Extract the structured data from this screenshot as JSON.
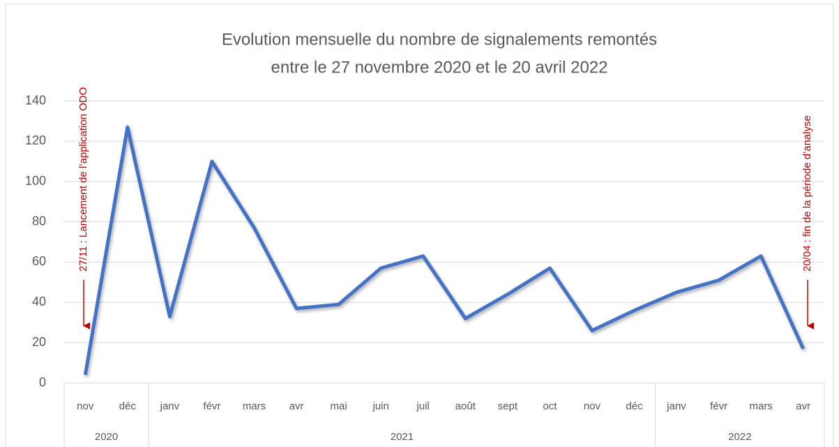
{
  "chart_data": {
    "type": "line",
    "title": [
      "Evolution mensuelle du nombre de signalements remontés",
      "entre le 27 novembre 2020 et le 20 avril 2022"
    ],
    "groups": [
      {
        "label": "2020",
        "categories": [
          "nov",
          "déc"
        ]
      },
      {
        "label": "2021",
        "categories": [
          "janv",
          "févr",
          "mars",
          "avr",
          "mai",
          "juin",
          "juil",
          "août",
          "sept",
          "oct",
          "nov",
          "déc"
        ]
      },
      {
        "label": "2022",
        "categories": [
          "janv",
          "févr",
          "mars",
          "avr"
        ]
      }
    ],
    "series": [
      {
        "name": "signalements",
        "color": "#4472c4",
        "values": [
          4,
          127,
          33,
          110,
          77,
          37,
          39,
          57,
          63,
          32,
          44,
          57,
          26,
          36,
          45,
          51,
          63,
          17
        ]
      }
    ],
    "ylim": [
      0,
      140
    ],
    "yticks": [
      0,
      20,
      40,
      60,
      80,
      100,
      120,
      140
    ],
    "grid": true,
    "annotations": [
      {
        "text": "27/11 : Lancement de l’application ODO",
        "color": "#c00000"
      },
      {
        "text": "20/04 : fin de la période d’analyse",
        "color": "#c00000"
      }
    ]
  }
}
